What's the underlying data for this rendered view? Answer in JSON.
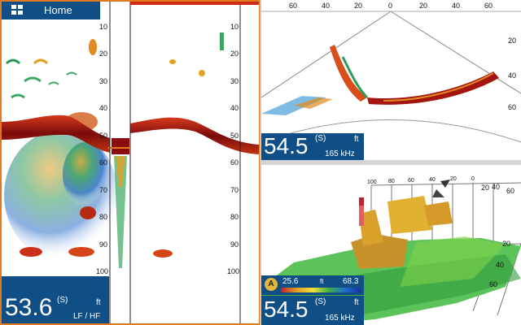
{
  "home": {
    "label": "Home",
    "icon": "grid-icon"
  },
  "left_pane": {
    "depth_scale": [
      "10",
      "20",
      "30",
      "40",
      "50",
      "60",
      "70",
      "80",
      "90",
      "100"
    ],
    "readout": {
      "value": "53.6",
      "suffix": "(S)",
      "unit": "ft",
      "mode": "LF / HF"
    }
  },
  "top_right": {
    "x_scale": [
      "60",
      "40",
      "20",
      "0",
      "20",
      "40",
      "60"
    ],
    "depth_scale": [
      "20",
      "40",
      "60"
    ],
    "readout": {
      "value": "54.5",
      "suffix": "(S)",
      "unit": "ft",
      "freq": "165 kHz"
    }
  },
  "bottom_right": {
    "x_scale": [
      "100",
      "80",
      "60",
      "40",
      "20",
      "0",
      "20",
      "40",
      "60"
    ],
    "depth_scale": [
      "20",
      "40",
      "60"
    ],
    "depth_key": {
      "badge": "A",
      "min": "25.6",
      "unit": "ft",
      "max": "68.3"
    },
    "readout": {
      "value": "54.5",
      "suffix": "(S)",
      "unit": "ft",
      "freq": "165 kHz"
    }
  },
  "colors": {
    "accent": "#e07a1c",
    "panel": "#0f4f86",
    "bottom_band": "#8b0f0f"
  }
}
